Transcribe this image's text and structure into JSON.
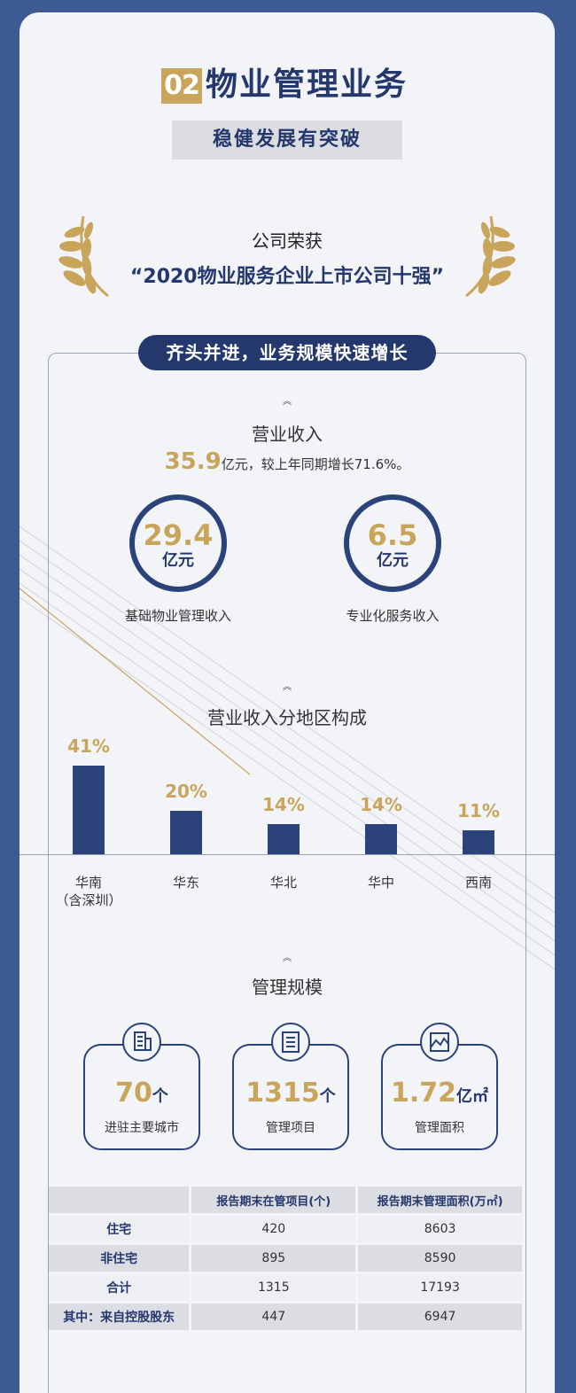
{
  "header": {
    "number": "02",
    "title": "物业管理业务",
    "subtitle": "稳健发展有突破"
  },
  "award": {
    "line1": "公司荣获",
    "line2": "“2020物业服务企业上市公司十强”"
  },
  "section_banner": "齐头并进，业务规模快速增长",
  "revenue": {
    "title": "营业收入",
    "total_value": "35.9",
    "total_suffix": "亿元，较上年同期增长71.6%。",
    "items": [
      {
        "value": "29.4",
        "unit": "亿元",
        "label": "基础物业管理收入"
      },
      {
        "value": "6.5",
        "unit": "亿元",
        "label": "专业化服务收入"
      }
    ]
  },
  "regional": {
    "title": "营业收入分地区构成"
  },
  "chart_data": {
    "type": "bar",
    "categories": [
      "华南（含深圳）",
      "华东",
      "华北",
      "华中",
      "西南"
    ],
    "category_lines": [
      [
        "华南",
        "（含深圳）"
      ],
      [
        "华东"
      ],
      [
        "华北"
      ],
      [
        "华中"
      ],
      [
        "西南"
      ]
    ],
    "values": [
      41,
      20,
      14,
      14,
      11
    ],
    "value_labels": [
      "41%",
      "20%",
      "14%",
      "14%",
      "11%"
    ],
    "ylim": [
      0,
      41
    ]
  },
  "scale": {
    "title": "管理规模",
    "items": [
      {
        "value": "70",
        "unit": "个",
        "label": "进驻主要城市",
        "icon": "building-icon"
      },
      {
        "value": "1315",
        "unit": "个",
        "label": "管理项目",
        "icon": "list-icon"
      },
      {
        "value": "1.72",
        "unit": "亿㎡",
        "label": "管理面积",
        "icon": "area-icon"
      }
    ]
  },
  "table": {
    "headers": [
      "",
      "报告期末在管项目(个)",
      "报告期末管理面积(万㎡)"
    ],
    "rows": [
      [
        "住宅",
        "420",
        "8603"
      ],
      [
        "非住宅",
        "895",
        "8590"
      ],
      [
        "合计",
        "1315",
        "17193"
      ],
      [
        "其中：来自控股股东",
        "447",
        "6947"
      ]
    ]
  },
  "colors": {
    "navy": "#2b427a",
    "gold": "#c9a55c",
    "background": "#3d5a92",
    "panel": "#f3f4f8"
  }
}
